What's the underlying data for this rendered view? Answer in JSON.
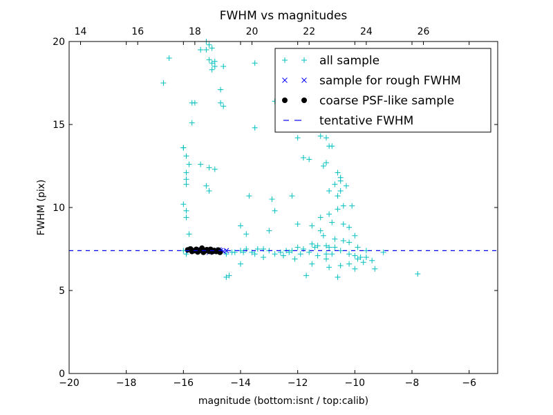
{
  "chart_data": {
    "type": "scatter",
    "title": "FWHM vs magnitudes",
    "xlabel": "magnitude (bottom:isnt / top:calib)",
    "ylabel": "FWHM (pix)",
    "xlim": [
      -20,
      -5
    ],
    "ylim": [
      0,
      20
    ],
    "x_ticks": [
      -20,
      -18,
      -16,
      -14,
      -12,
      -10,
      -8,
      -6
    ],
    "x_tick_labels": [
      "−20",
      "−18",
      "−16",
      "−14",
      "−12",
      "−10",
      "−8",
      "−6"
    ],
    "y_ticks": [
      0,
      5,
      10,
      15,
      20
    ],
    "y_tick_labels": [
      "0",
      "5",
      "10",
      "15",
      "20"
    ],
    "top_axis": {
      "offset": 33.6,
      "ticks": [
        14,
        16,
        18,
        20,
        22,
        24,
        26
      ],
      "tick_labels": [
        "14",
        "16",
        "18",
        "20",
        "22",
        "24",
        "26"
      ]
    },
    "legend_position": "top-right",
    "series": [
      {
        "name": "all sample",
        "marker": "plus",
        "color": "#00bfbf",
        "points": [
          [
            -16.7,
            17.5
          ],
          [
            -16.5,
            19.0
          ],
          [
            -15.7,
            16.3
          ],
          [
            -15.6,
            16.3
          ],
          [
            -15.7,
            15.1
          ],
          [
            -15.4,
            19.5
          ],
          [
            -15.2,
            19.5
          ],
          [
            -15.2,
            20.0
          ],
          [
            -15.1,
            19.8
          ],
          [
            -15.0,
            19.6
          ],
          [
            -15.1,
            18.9
          ],
          [
            -15.0,
            18.7
          ],
          [
            -15.0,
            18.3
          ],
          [
            -14.9,
            18.5
          ],
          [
            -14.9,
            18.8
          ],
          [
            -14.6,
            18.5
          ],
          [
            -14.7,
            17.1
          ],
          [
            -14.7,
            16.3
          ],
          [
            -14.6,
            16.1
          ],
          [
            -13.5,
            18.7
          ],
          [
            -13.5,
            14.8
          ],
          [
            -16.0,
            13.6
          ],
          [
            -16.0,
            13.6
          ],
          [
            -15.9,
            13.1
          ],
          [
            -15.8,
            12.6
          ],
          [
            -15.9,
            12.1
          ],
          [
            -15.9,
            11.7
          ],
          [
            -15.9,
            11.4
          ],
          [
            -15.4,
            12.6
          ],
          [
            -15.1,
            12.4
          ],
          [
            -14.9,
            12.3
          ],
          [
            -15.2,
            11.3
          ],
          [
            -15.1,
            11.0
          ],
          [
            -16.0,
            10.2
          ],
          [
            -15.9,
            9.8
          ],
          [
            -15.9,
            9.4
          ],
          [
            -15.8,
            8.4
          ],
          [
            -13.7,
            10.7
          ],
          [
            -14.0,
            8.9
          ],
          [
            -13.8,
            8.4
          ],
          [
            -13.0,
            8.6
          ],
          [
            -12.9,
            10.5
          ],
          [
            -12.8,
            9.8
          ],
          [
            -12.2,
            10.7
          ],
          [
            -12.0,
            9.0
          ],
          [
            -12.0,
            14.2
          ],
          [
            -11.8,
            13.0
          ],
          [
            -11.6,
            12.9
          ],
          [
            -11.2,
            14.3
          ],
          [
            -11.0,
            14.2
          ],
          [
            -10.9,
            13.7
          ],
          [
            -10.8,
            13.7
          ],
          [
            -11.0,
            12.7
          ],
          [
            -11.1,
            12.5
          ],
          [
            -12.8,
            16.4
          ],
          [
            -10.6,
            12.1
          ],
          [
            -10.5,
            11.8
          ],
          [
            -10.5,
            11.6
          ],
          [
            -10.7,
            11.4
          ],
          [
            -10.9,
            11.0
          ],
          [
            -10.5,
            11.0
          ],
          [
            -10.6,
            10.7
          ],
          [
            -10.3,
            11.3
          ],
          [
            -10.4,
            10.1
          ],
          [
            -10.1,
            10.1
          ],
          [
            -10.6,
            9.9
          ],
          [
            -10.9,
            9.6
          ],
          [
            -11.2,
            9.4
          ],
          [
            -11.5,
            8.9
          ],
          [
            -11.2,
            8.6
          ],
          [
            -10.8,
            9.1
          ],
          [
            -10.4,
            9.0
          ],
          [
            -10.2,
            8.8
          ],
          [
            -10.0,
            8.3
          ],
          [
            -11.1,
            8.3
          ],
          [
            -10.7,
            8.1
          ],
          [
            -10.4,
            8.0
          ],
          [
            -10.9,
            7.6
          ],
          [
            -11.3,
            7.7
          ],
          [
            -10.2,
            7.9
          ],
          [
            -9.9,
            7.6
          ],
          [
            -11.5,
            6.6
          ],
          [
            -11.0,
            6.9
          ],
          [
            -10.5,
            6.5
          ],
          [
            -10.9,
            6.4
          ],
          [
            -11.7,
            5.9
          ],
          [
            -10.6,
            5.8
          ],
          [
            -10.0,
            6.3
          ],
          [
            -9.9,
            6.9
          ],
          [
            -9.7,
            6.7
          ],
          [
            -9.3,
            6.3
          ],
          [
            -9.0,
            7.3
          ],
          [
            -9.6,
            7.0
          ],
          [
            -9.4,
            6.8
          ],
          [
            -10.2,
            6.6
          ],
          [
            -7.8,
            6.0
          ],
          [
            -14.4,
            5.9
          ],
          [
            -14.5,
            5.8
          ],
          [
            -14.0,
            6.6
          ],
          [
            -13.2,
            7.0
          ],
          [
            -12.5,
            7.1
          ],
          [
            -12.1,
            6.9
          ],
          [
            -12.8,
            7.2
          ],
          [
            -13.5,
            7.2
          ],
          [
            -14.2,
            7.3
          ],
          [
            -14.0,
            7.4
          ],
          [
            -13.6,
            7.3
          ],
          [
            -13.0,
            7.4
          ],
          [
            -12.6,
            7.3
          ],
          [
            -12.3,
            7.3
          ],
          [
            -11.9,
            7.2
          ],
          [
            -11.6,
            7.3
          ],
          [
            -11.3,
            7.1
          ],
          [
            -11.0,
            7.2
          ],
          [
            -10.8,
            7.2
          ],
          [
            -10.5,
            7.4
          ],
          [
            -10.2,
            7.2
          ],
          [
            -10.0,
            7.1
          ],
          [
            -9.8,
            7.0
          ],
          [
            -9.6,
            7.4
          ],
          [
            -11.8,
            7.5
          ],
          [
            -12.0,
            7.6
          ],
          [
            -11.4,
            7.6
          ],
          [
            -13.8,
            7.5
          ],
          [
            -13.2,
            7.5
          ],
          [
            -12.4,
            7.4
          ],
          [
            -11.5,
            7.8
          ],
          [
            -11.0,
            7.7
          ],
          [
            -10.7,
            7.6
          ],
          [
            -14.5,
            7.2
          ],
          [
            -14.3,
            7.3
          ],
          [
            -13.9,
            7.3
          ],
          [
            -13.4,
            7.5
          ],
          [
            -12.2,
            7.4
          ],
          [
            -15.9,
            7.2
          ],
          [
            -15.8,
            7.5
          ],
          [
            -16.0,
            7.4
          ]
        ]
      },
      {
        "name": "sample for rough FWHM",
        "marker": "x",
        "color": "#0000ff",
        "points": [
          [
            -15.8,
            7.4
          ],
          [
            -15.6,
            7.35
          ],
          [
            -15.4,
            7.45
          ],
          [
            -15.2,
            7.4
          ],
          [
            -15.0,
            7.35
          ],
          [
            -14.9,
            7.42
          ],
          [
            -14.8,
            7.38
          ],
          [
            -14.7,
            7.4
          ],
          [
            -14.6,
            7.36
          ],
          [
            -14.5,
            7.4
          ],
          [
            -15.1,
            7.3
          ],
          [
            -14.75,
            7.45
          ]
        ]
      },
      {
        "name": "coarse PSF-like sample",
        "marker": "circle",
        "color": "#000000",
        "points": [
          [
            -15.85,
            7.45
          ],
          [
            -15.75,
            7.5
          ],
          [
            -15.7,
            7.35
          ],
          [
            -15.62,
            7.4
          ],
          [
            -15.55,
            7.48
          ],
          [
            -15.5,
            7.32
          ],
          [
            -15.42,
            7.42
          ],
          [
            -15.35,
            7.55
          ],
          [
            -15.3,
            7.3
          ],
          [
            -15.25,
            7.38
          ],
          [
            -15.18,
            7.46
          ],
          [
            -15.1,
            7.36
          ],
          [
            -15.05,
            7.48
          ],
          [
            -15.0,
            7.33
          ],
          [
            -14.92,
            7.41
          ],
          [
            -14.85,
            7.35
          ],
          [
            -14.78,
            7.44
          ],
          [
            -14.72,
            7.3
          ]
        ]
      },
      {
        "name": "tentative FWHM",
        "marker": "dashed-line",
        "color": "#0000ff",
        "y_value": 7.4
      }
    ]
  }
}
